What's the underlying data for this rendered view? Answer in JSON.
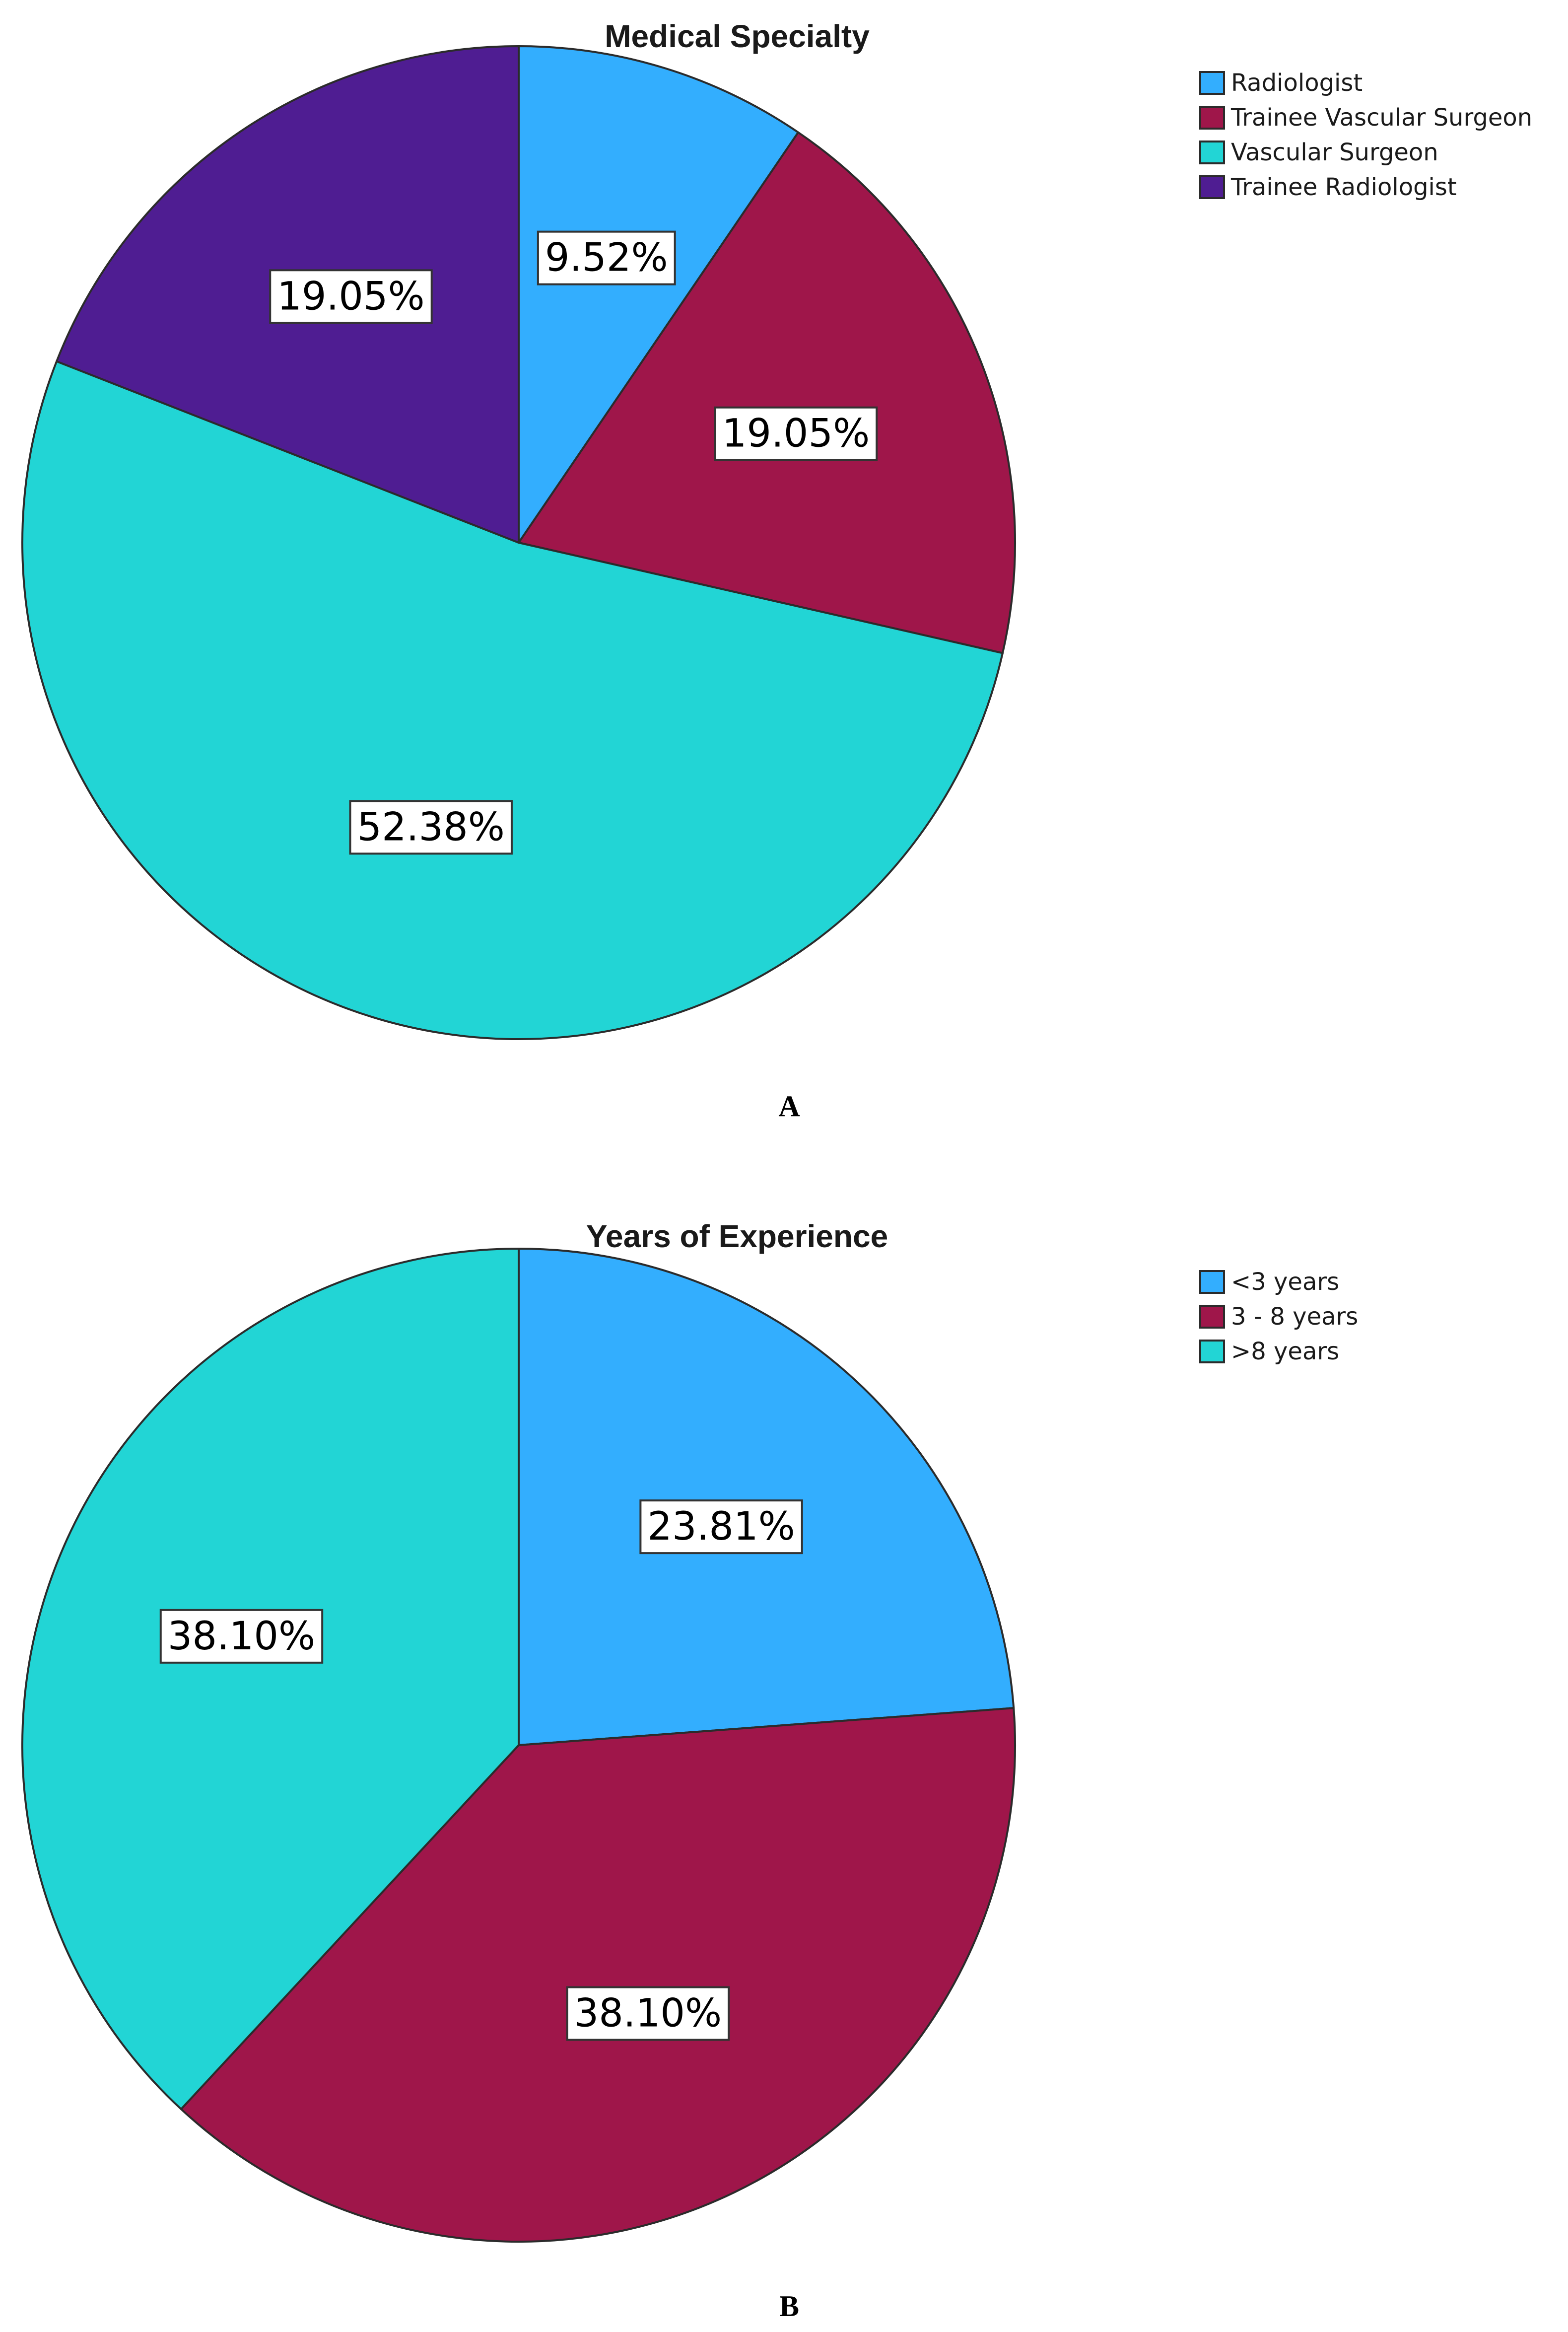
{
  "chart_data": [
    {
      "type": "pie",
      "title": "Medical Specialty",
      "panel_label": "A",
      "legend_position": "top-right",
      "slices": [
        {
          "label": "Radiologist",
          "value": 9.52,
          "value_label": "9.52%",
          "color": "#33aefe"
        },
        {
          "label": "Trainee Vascular Surgeon",
          "value": 19.05,
          "value_label": "19.05%",
          "color": "#9f164a"
        },
        {
          "label": "Vascular Surgeon",
          "value": 52.38,
          "value_label": "52.38%",
          "color": "#22d5d5"
        },
        {
          "label": "Trainee Radiologist",
          "value": 19.05,
          "value_label": "19.05%",
          "color": "#4f1d92"
        }
      ]
    },
    {
      "type": "pie",
      "title": "Years of Experience",
      "panel_label": "B",
      "legend_position": "top-right",
      "slices": [
        {
          "label": "<3 years",
          "value": 23.81,
          "value_label": "23.81%",
          "color": "#33aefe"
        },
        {
          "label": "3 - 8 years",
          "value": 38.1,
          "value_label": "38.10%",
          "color": "#9f164a"
        },
        {
          "label": ">8 years",
          "value": 38.1,
          "value_label": "38.10%",
          "color": "#22d5d5"
        }
      ]
    }
  ]
}
